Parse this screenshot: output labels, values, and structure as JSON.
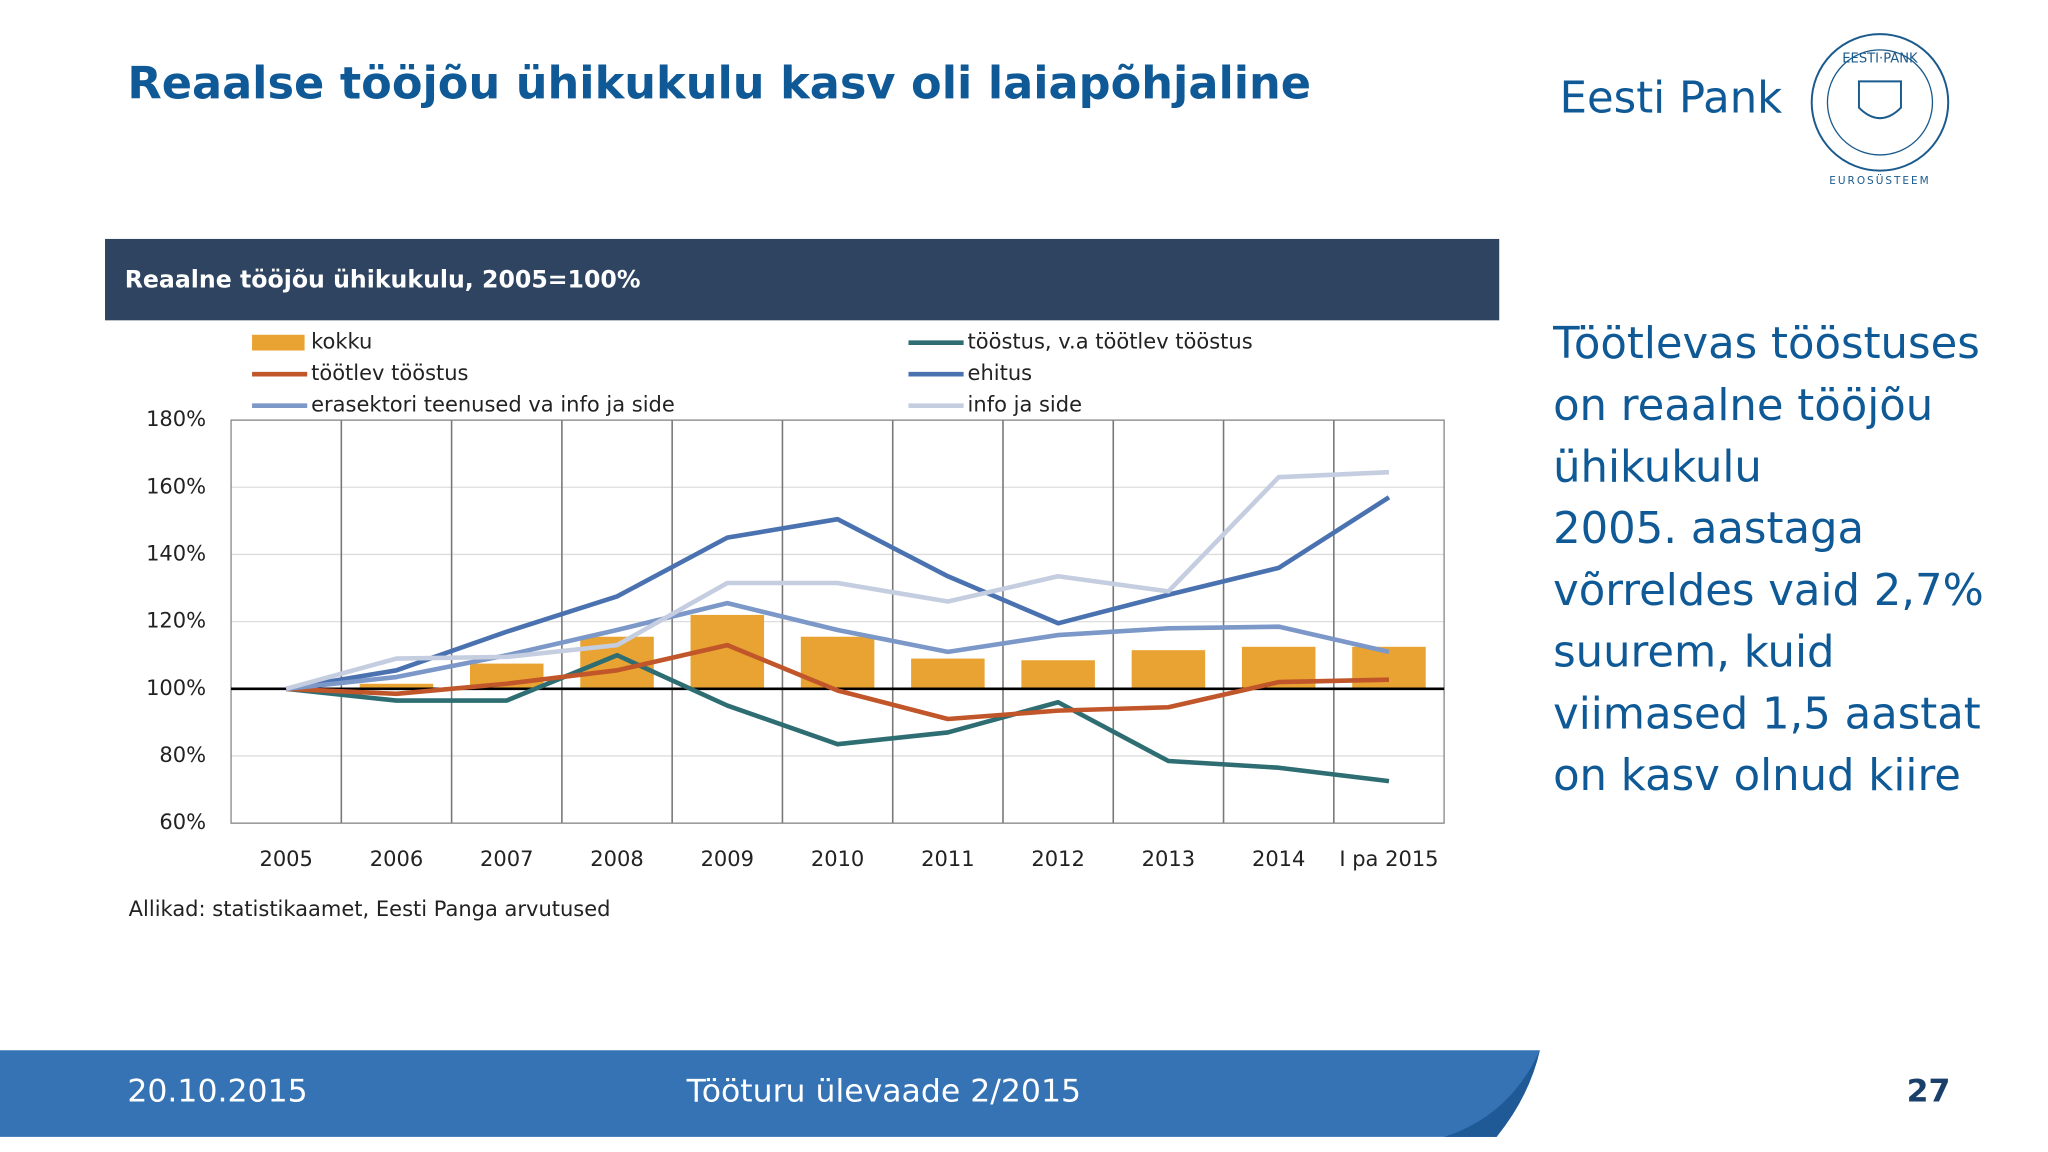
{
  "header": {
    "title": "Reaalse tööjõu ühikukulu kasv oli laiapõhjaline",
    "brand": "Eesti Pank"
  },
  "logo": {
    "top": "EESTI·PANK",
    "bottom": "EUROSÜSTEEM"
  },
  "chart_data": {
    "type": "combo",
    "title": "Reaalne tööjõu ühikukulu, 2005=100%",
    "categories": [
      "2005",
      "2006",
      "2007",
      "2008",
      "2009",
      "2010",
      "2011",
      "2012",
      "2013",
      "2014",
      "I pa 2015"
    ],
    "series": [
      {
        "name": "kokku",
        "type": "bar",
        "color": "#e8a332",
        "values": [
          100,
          101.5,
          107.5,
          115.5,
          122,
          115.5,
          109,
          108.5,
          111.5,
          112.5,
          112.5
        ]
      },
      {
        "name": "tööstus, v.a töötlev tööstus",
        "type": "line",
        "color": "#2e6e72",
        "values": [
          100,
          96.5,
          96.5,
          110,
          95,
          83.5,
          87,
          96,
          78.5,
          76.5,
          72.5
        ]
      },
      {
        "name": "töötlev tööstus",
        "type": "line",
        "color": "#c0562a",
        "values": [
          100,
          98.5,
          101.5,
          105.5,
          113,
          99.5,
          91,
          93.5,
          94.5,
          102,
          102.7
        ]
      },
      {
        "name": "ehitus",
        "type": "line",
        "color": "#4a72b0",
        "values": [
          100,
          105.5,
          117,
          127.5,
          145,
          150.5,
          133.5,
          119.5,
          128,
          136,
          157
        ]
      },
      {
        "name": "erasektori teenused va info ja side",
        "type": "line",
        "color": "#7b98c8",
        "values": [
          100,
          103.5,
          110,
          117.5,
          125.5,
          117.5,
          111,
          116,
          118,
          118.5,
          111
        ]
      },
      {
        "name": "info ja side",
        "type": "line",
        "color": "#c5cde0",
        "values": [
          100,
          109,
          109.5,
          113,
          131.5,
          131.5,
          126,
          133.5,
          129,
          163,
          164.5
        ]
      }
    ],
    "ylim": [
      60,
      180
    ],
    "yticks": [
      {
        "value": 60,
        "label": "60%"
      },
      {
        "value": 80,
        "label": "80%"
      },
      {
        "value": 100,
        "label": "100%"
      },
      {
        "value": 120,
        "label": "120%"
      },
      {
        "value": 140,
        "label": "140%"
      },
      {
        "value": 160,
        "label": "160%"
      },
      {
        "value": 180,
        "label": "180%"
      }
    ],
    "baseline": 100,
    "grid": true,
    "source": "Allikad: statistikaamet, Eesti Panga arvutused"
  },
  "side_text": [
    "Töötlevas tööstuses",
    "on reaalne tööjõu",
    "ühikukulu",
    "2005. aastaga",
    "võrreldes vaid 2,7%",
    "suurem, kuid",
    "viimased 1,5 aastat",
    "on kasv olnud kiire"
  ],
  "footer": {
    "date": "20.10.2015",
    "title": "Tööturu ülevaade 2/2015",
    "page": "27"
  }
}
